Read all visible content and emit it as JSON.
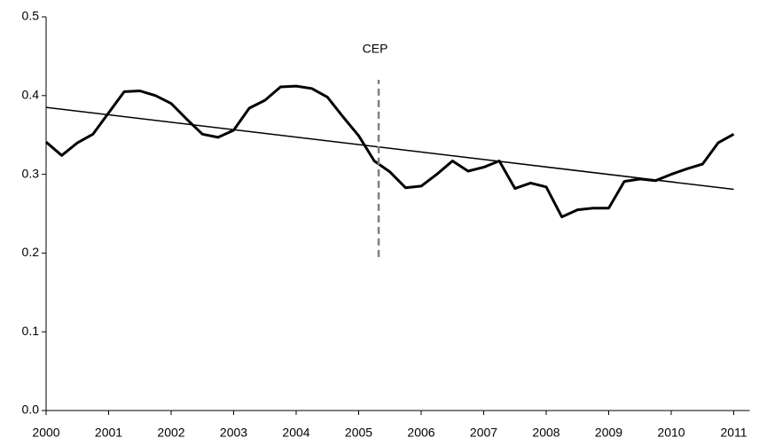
{
  "chart_data": {
    "type": "line",
    "x": [
      2000,
      2000.25,
      2000.5,
      2000.75,
      2001,
      2001.25,
      2001.5,
      2001.75,
      2002,
      2002.25,
      2002.5,
      2002.75,
      2003,
      2003.25,
      2003.5,
      2003.75,
      2004,
      2004.25,
      2004.5,
      2004.75,
      2005,
      2005.25,
      2005.5,
      2005.75,
      2006,
      2006.25,
      2006.5,
      2006.75,
      2007,
      2007.25,
      2007.5,
      2007.75,
      2008,
      2008.25,
      2008.5,
      2008.75,
      2009,
      2009.25,
      2009.5,
      2009.75,
      2010,
      2010.25,
      2010.5,
      2010.75,
      2011
    ],
    "series": [
      {
        "color": "#000000",
        "values": [
          0.341,
          0.324,
          0.34,
          0.351,
          0.378,
          0.405,
          0.406,
          0.4,
          0.39,
          0.37,
          0.351,
          0.347,
          0.356,
          0.384,
          0.394,
          0.411,
          0.412,
          0.409,
          0.398,
          0.373,
          0.349,
          0.317,
          0.303,
          0.283,
          0.285,
          0.3,
          0.317,
          0.304,
          0.309,
          0.317,
          0.282,
          0.289,
          0.284,
          0.246,
          0.255,
          0.257,
          0.257,
          0.291,
          0.294,
          0.292,
          0.3,
          0.307,
          0.313,
          0.34,
          0.351
        ]
      }
    ],
    "trend_line": {
      "color": "#000000",
      "x": [
        2000,
        2011
      ],
      "values": [
        0.385,
        0.281
      ]
    },
    "annotation": {
      "text": "CEP",
      "x": 2005.32,
      "y_range": [
        0.195,
        0.42
      ],
      "color": "#808080"
    },
    "xlim": [
      2000,
      2011
    ],
    "xticks": [
      2000,
      2001,
      2002,
      2003,
      2004,
      2005,
      2006,
      2007,
      2008,
      2009,
      2010,
      2011
    ],
    "ylim": [
      0,
      0.5
    ],
    "yticks": [
      {
        "value": 0,
        "label": "0.0"
      },
      0.1,
      0.2,
      0.3,
      0.4,
      0.5
    ],
    "grid": false
  }
}
